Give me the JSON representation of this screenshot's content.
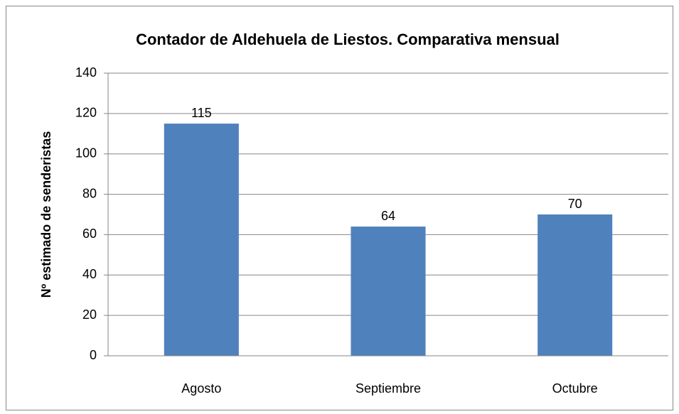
{
  "chart_data": {
    "type": "bar",
    "title": "Contador de Aldehuela de Liestos. Comparativa mensual",
    "y_label": "Nº estimado de senderistas",
    "categories": [
      "Agosto",
      "Septiembre",
      "Octubre"
    ],
    "values": [
      115,
      64,
      70
    ],
    "color": "#4f81bd",
    "ylim": [
      0,
      140
    ],
    "yticks": [
      0,
      20,
      40,
      60,
      80,
      100,
      120,
      140
    ],
    "grid": true
  }
}
